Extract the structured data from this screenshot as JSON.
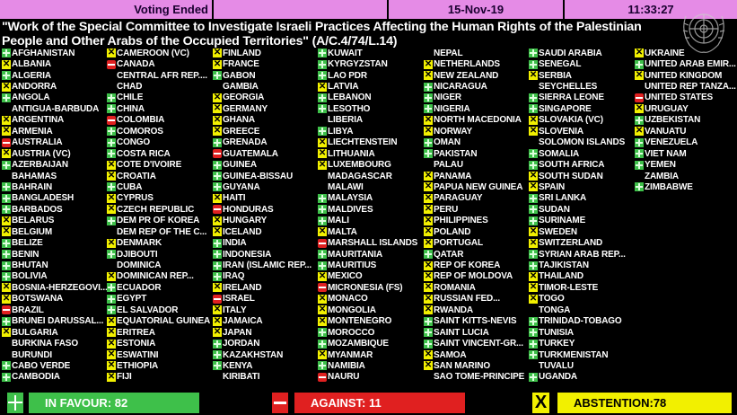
{
  "header": {
    "status": "Voting Ended",
    "date": "15-Nov-19",
    "time": "11:33:27"
  },
  "resolution_title": "\"Work of the Special Committee to Investigate Israeli Practices Affecting the Human Rights of the Palestinian People and Other Arabs of the Occupied Territories\" (A/C.4/74/L.14)",
  "logo": "united-nations-emblem",
  "vote_legend": {
    "Y": "in favour (plus)",
    "N": "against (minus)",
    "A": "abstention (x)",
    "": "not voting"
  },
  "colors": {
    "header": "#e58be6",
    "favour": "#3ec04a",
    "against": "#e02020",
    "abstention": "#f2f000"
  },
  "columns": [
    [
      [
        "AFGHANISTAN",
        "Y"
      ],
      [
        "ALBANIA",
        "A"
      ],
      [
        "ALGERIA",
        "Y"
      ],
      [
        "ANDORRA",
        "A"
      ],
      [
        "ANGOLA",
        "Y"
      ],
      [
        "ANTIGUA-BARBUDA",
        ""
      ],
      [
        "ARGENTINA",
        "A"
      ],
      [
        "ARMENIA",
        "A"
      ],
      [
        "AUSTRALIA",
        "N"
      ],
      [
        "AUSTRIA (VC)",
        "A"
      ],
      [
        "AZERBAIJAN",
        "Y"
      ],
      [
        "BAHAMAS",
        ""
      ],
      [
        "BAHRAIN",
        "Y"
      ],
      [
        "BANGLADESH",
        "Y"
      ],
      [
        "BARBADOS",
        "Y"
      ],
      [
        "BELARUS",
        "A"
      ],
      [
        "BELGIUM",
        "A"
      ],
      [
        "BELIZE",
        "Y"
      ],
      [
        "BENIN",
        "Y"
      ],
      [
        "BHUTAN",
        "Y"
      ],
      [
        "BOLIVIA",
        "Y"
      ],
      [
        "BOSNIA-HERZEGOVI...",
        "A"
      ],
      [
        "BOTSWANA",
        "A"
      ],
      [
        "BRAZIL",
        "N"
      ],
      [
        "BRUNEI DARUSSAL...",
        "Y"
      ],
      [
        "BULGARIA",
        "A"
      ],
      [
        "BURKINA FASO",
        ""
      ],
      [
        "BURUNDI",
        ""
      ],
      [
        "CABO VERDE",
        "Y"
      ],
      [
        "CAMBODIA",
        "Y"
      ]
    ],
    [
      [
        "CAMEROON (VC)",
        "A"
      ],
      [
        "CANADA",
        "N"
      ],
      [
        "CENTRAL AFR REP....",
        ""
      ],
      [
        "CHAD",
        ""
      ],
      [
        "CHILE",
        "Y"
      ],
      [
        "CHINA",
        "Y"
      ],
      [
        "COLOMBIA",
        "N"
      ],
      [
        "COMOROS",
        "Y"
      ],
      [
        "CONGO",
        "Y"
      ],
      [
        "COSTA RICA",
        "Y"
      ],
      [
        "COTE D'IVOIRE",
        "A"
      ],
      [
        "CROATIA",
        "A"
      ],
      [
        "CUBA",
        "Y"
      ],
      [
        "CYPRUS",
        "A"
      ],
      [
        "CZECH REPUBLIC",
        "A"
      ],
      [
        "DEM PR OF KOREA",
        "Y"
      ],
      [
        "DEM REP OF THE C...",
        ""
      ],
      [
        "DENMARK",
        "A"
      ],
      [
        "DJIBOUTI",
        "Y"
      ],
      [
        "DOMINICA",
        ""
      ],
      [
        "DOMINICAN REP...",
        "A"
      ],
      [
        "ECUADOR",
        "Y"
      ],
      [
        "EGYPT",
        "Y"
      ],
      [
        "EL SALVADOR",
        "Y"
      ],
      [
        "EQUATORIAL GUINEA",
        "A"
      ],
      [
        "ERITREA",
        "A"
      ],
      [
        "ESTONIA",
        "A"
      ],
      [
        "ESWATINI",
        "A"
      ],
      [
        "ETHIOPIA",
        "A"
      ],
      [
        "FIJI",
        "A"
      ]
    ],
    [
      [
        "FINLAND",
        "A"
      ],
      [
        "FRANCE",
        "A"
      ],
      [
        "GABON",
        "Y"
      ],
      [
        "GAMBIA",
        ""
      ],
      [
        "GEORGIA",
        "A"
      ],
      [
        "GERMANY",
        "A"
      ],
      [
        "GHANA",
        "A"
      ],
      [
        "GREECE",
        "A"
      ],
      [
        "GRENADA",
        "Y"
      ],
      [
        "GUATEMALA",
        "N"
      ],
      [
        "GUINEA",
        "Y"
      ],
      [
        "GUINEA-BISSAU",
        "Y"
      ],
      [
        "GUYANA",
        "Y"
      ],
      [
        "HAITI",
        "A"
      ],
      [
        "HONDURAS",
        "N"
      ],
      [
        "HUNGARY",
        "A"
      ],
      [
        "ICELAND",
        "A"
      ],
      [
        "INDIA",
        "Y"
      ],
      [
        "INDONESIA",
        "Y"
      ],
      [
        "IRAN (ISLAMIC REP...",
        "Y"
      ],
      [
        "IRAQ",
        "Y"
      ],
      [
        "IRELAND",
        "A"
      ],
      [
        "ISRAEL",
        "N"
      ],
      [
        "ITALY",
        "A"
      ],
      [
        "JAMAICA",
        "A"
      ],
      [
        "JAPAN",
        "A"
      ],
      [
        "JORDAN",
        "Y"
      ],
      [
        "KAZAKHSTAN",
        "Y"
      ],
      [
        "KENYA",
        "Y"
      ],
      [
        "KIRIBATI",
        ""
      ]
    ],
    [
      [
        "KUWAIT",
        "Y"
      ],
      [
        "KYRGYZSTAN",
        "Y"
      ],
      [
        "LAO PDR",
        "Y"
      ],
      [
        "LATVIA",
        "A"
      ],
      [
        "LEBANON",
        "Y"
      ],
      [
        "LESOTHO",
        "Y"
      ],
      [
        "LIBERIA",
        ""
      ],
      [
        "LIBYA",
        "Y"
      ],
      [
        "LIECHTENSTEIN",
        "A"
      ],
      [
        "LITHUANIA",
        "A"
      ],
      [
        "LUXEMBOURG",
        "A"
      ],
      [
        "MADAGASCAR",
        ""
      ],
      [
        "MALAWI",
        ""
      ],
      [
        "MALAYSIA",
        "Y"
      ],
      [
        "MALDIVES",
        "Y"
      ],
      [
        "MALI",
        "Y"
      ],
      [
        "MALTA",
        "A"
      ],
      [
        "MARSHALL ISLANDS",
        "N"
      ],
      [
        "MAURITANIA",
        "Y"
      ],
      [
        "MAURITIUS",
        "Y"
      ],
      [
        "MEXICO",
        "A"
      ],
      [
        "MICRONESIA (FS)",
        "N"
      ],
      [
        "MONACO",
        "A"
      ],
      [
        "MONGOLIA",
        "A"
      ],
      [
        "MONTENEGRO",
        "A"
      ],
      [
        "MOROCCO",
        "Y"
      ],
      [
        "MOZAMBIQUE",
        "Y"
      ],
      [
        "MYANMAR",
        "A"
      ],
      [
        "NAMIBIA",
        "Y"
      ],
      [
        "NAURU",
        "N"
      ]
    ],
    [
      [
        "NEPAL",
        ""
      ],
      [
        "NETHERLANDS",
        "A"
      ],
      [
        "NEW ZEALAND",
        "A"
      ],
      [
        "NICARAGUA",
        "Y"
      ],
      [
        "NIGER",
        "Y"
      ],
      [
        "NIGERIA",
        "Y"
      ],
      [
        "NORTH MACEDONIA",
        "A"
      ],
      [
        "NORWAY",
        "A"
      ],
      [
        "OMAN",
        "Y"
      ],
      [
        "PAKISTAN",
        "Y"
      ],
      [
        "PALAU",
        ""
      ],
      [
        "PANAMA",
        "A"
      ],
      [
        "PAPUA NEW GUINEA",
        "A"
      ],
      [
        "PARAGUAY",
        "A"
      ],
      [
        "PERU",
        "A"
      ],
      [
        "PHILIPPINES",
        "A"
      ],
      [
        "POLAND",
        "A"
      ],
      [
        "PORTUGAL",
        "A"
      ],
      [
        "QATAR",
        "Y"
      ],
      [
        "REP OF KOREA",
        "A"
      ],
      [
        "REP OF MOLDOVA",
        "A"
      ],
      [
        "ROMANIA",
        "A"
      ],
      [
        "RUSSIAN FED...",
        "A"
      ],
      [
        "RWANDA",
        "A"
      ],
      [
        "SAINT KITTS-NEVIS",
        "Y"
      ],
      [
        "SAINT LUCIA",
        "Y"
      ],
      [
        "SAINT VINCENT-GR...",
        "Y"
      ],
      [
        "SAMOA",
        "A"
      ],
      [
        "SAN MARINO",
        "A"
      ],
      [
        "SAO TOME-PRINCIPE",
        ""
      ]
    ],
    [
      [
        "SAUDI ARABIA",
        "Y"
      ],
      [
        "SENEGAL",
        "Y"
      ],
      [
        "SERBIA",
        "A"
      ],
      [
        "SEYCHELLES",
        ""
      ],
      [
        "SIERRA LEONE",
        "Y"
      ],
      [
        "SINGAPORE",
        "Y"
      ],
      [
        "SLOVAKIA (VC)",
        "A"
      ],
      [
        "SLOVENIA",
        "A"
      ],
      [
        "SOLOMON ISLANDS",
        ""
      ],
      [
        "SOMALIA",
        "Y"
      ],
      [
        "SOUTH AFRICA",
        "Y"
      ],
      [
        "SOUTH SUDAN",
        "A"
      ],
      [
        "SPAIN",
        "A"
      ],
      [
        "SRI LANKA",
        "Y"
      ],
      [
        "SUDAN",
        "Y"
      ],
      [
        "SURINAME",
        "Y"
      ],
      [
        "SWEDEN",
        "A"
      ],
      [
        "SWITZERLAND",
        "A"
      ],
      [
        "SYRIAN ARAB REP...",
        "Y"
      ],
      [
        "TAJIKISTAN",
        "Y"
      ],
      [
        "THAILAND",
        "A"
      ],
      [
        "TIMOR-LESTE",
        "A"
      ],
      [
        "TOGO",
        "A"
      ],
      [
        "TONGA",
        ""
      ],
      [
        "TRINIDAD-TOBAGO",
        "Y"
      ],
      [
        "TUNISIA",
        "Y"
      ],
      [
        "TURKEY",
        "Y"
      ],
      [
        "TURKMENISTAN",
        "Y"
      ],
      [
        "TUVALU",
        ""
      ],
      [
        "UGANDA",
        "Y"
      ]
    ],
    [
      [
        "UKRAINE",
        "A"
      ],
      [
        "UNITED ARAB EMIR...",
        "Y"
      ],
      [
        "UNITED KINGDOM",
        "A"
      ],
      [
        "UNITED REP TANZA...",
        ""
      ],
      [
        "UNITED STATES",
        "N"
      ],
      [
        "URUGUAY",
        "A"
      ],
      [
        "UZBEKISTAN",
        "Y"
      ],
      [
        "VANUATU",
        "A"
      ],
      [
        "VENEZUELA",
        "Y"
      ],
      [
        "VIET NAM",
        "Y"
      ],
      [
        "YEMEN",
        "Y"
      ],
      [
        "ZAMBIA",
        ""
      ],
      [
        "ZIMBABWE",
        "Y"
      ]
    ]
  ],
  "totals": {
    "favour": "IN FAVOUR: 82",
    "against": "AGAINST: 11",
    "abstention": "ABSTENTION:78"
  }
}
